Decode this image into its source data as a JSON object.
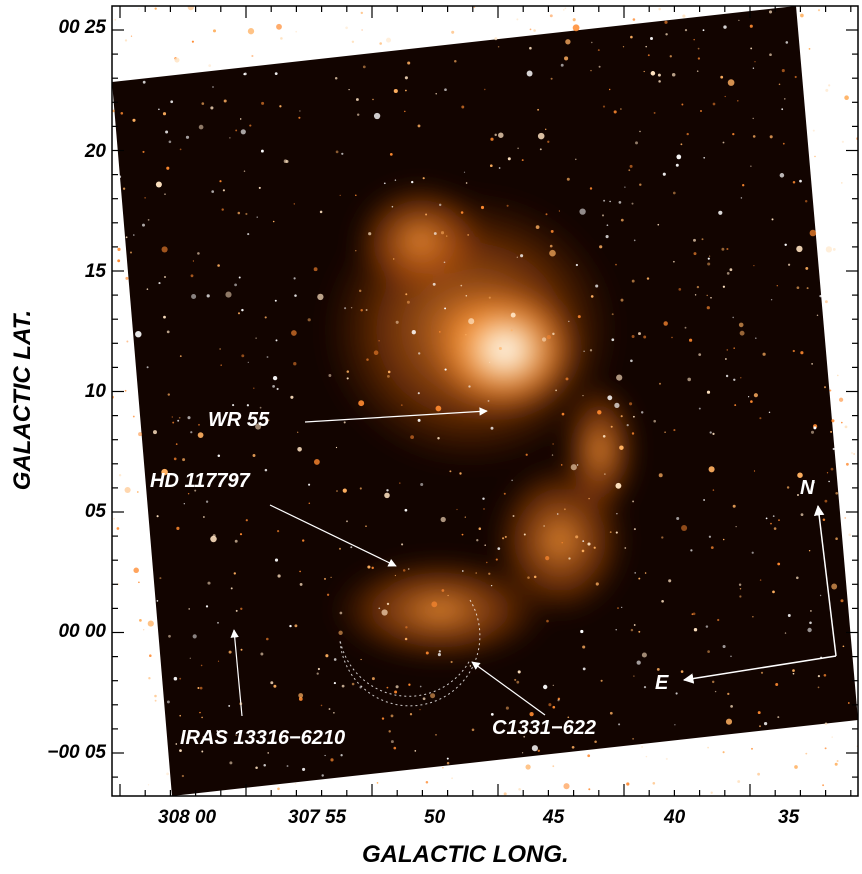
{
  "figure": {
    "y_axis_title": "GALACTIC LAT.",
    "x_axis_title": "GALACTIC LONG.",
    "y_tick_labels": [
      "00 25",
      "20",
      "15",
      "10",
      "05",
      "00 00",
      "−00 05"
    ],
    "x_tick_labels": [
      "308 00",
      "307 55",
      "50",
      "45",
      "40",
      "35"
    ]
  },
  "annotations": {
    "wr55": "WR 55",
    "hd117797": "HD 117797",
    "iras": "IRAS 13316−6210",
    "c1331": "C1331−622",
    "north": "N",
    "east": "E"
  },
  "colors": {
    "nebula_core": "#ffffff",
    "nebula_bright": "#ff9a3a",
    "nebula_mid": "#c85a10",
    "sky_background": "#120400"
  }
}
